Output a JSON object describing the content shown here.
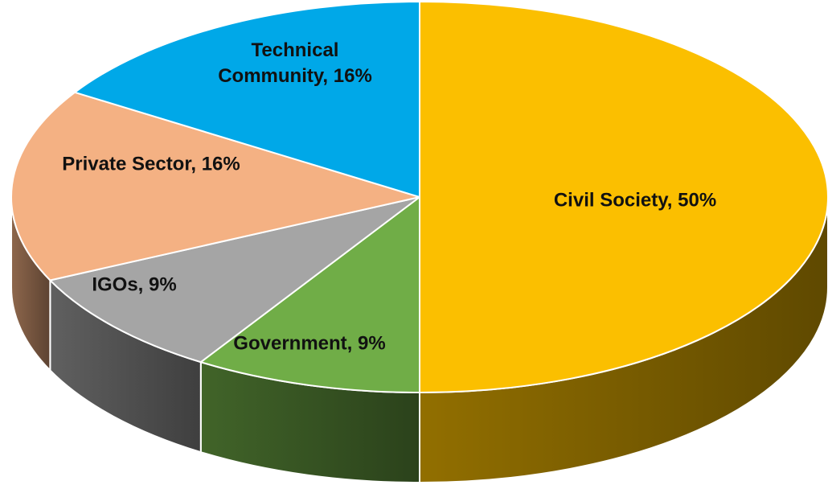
{
  "chart_data": {
    "type": "pie",
    "style": "3d",
    "title": "",
    "legend": "none",
    "slices": [
      {
        "name": "Civil Society",
        "value": 50,
        "label": "Civil Society, 50%",
        "color": "#FBBF00"
      },
      {
        "name": "Government",
        "value": 9,
        "label": "Government, 9%",
        "color": "#70AD47"
      },
      {
        "name": "IGOs",
        "value": 9,
        "label": "IGOs, 9%",
        "color": "#A5A5A5"
      },
      {
        "name": "Private Sector",
        "value": 16,
        "label": "Private Sector, 16%",
        "color": "#F4B183"
      },
      {
        "name": "Technical Community",
        "value": 16,
        "label": "Technical Community, 16%",
        "label_lines": [
          "Technical",
          "Community, 16%"
        ],
        "color": "#00A8E8"
      }
    ]
  }
}
